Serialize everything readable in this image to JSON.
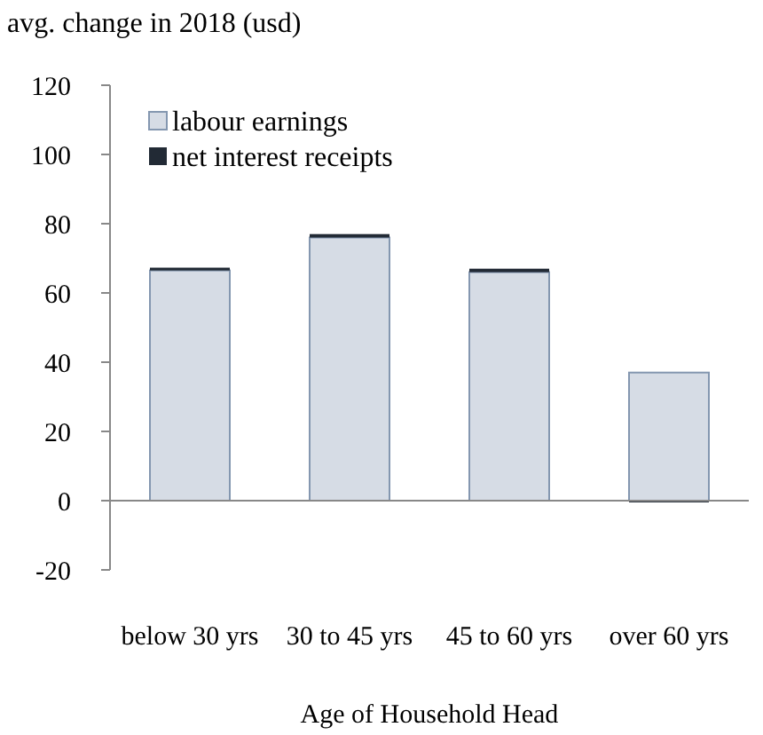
{
  "chart_data": {
    "type": "bar",
    "ylabel": "avg. change in 2018 (usd)",
    "xlabel": "Age of Household Head",
    "categories": [
      "below 30 yrs",
      "30 to 45 yrs",
      "45 to 60 yrs",
      "over 60 yrs"
    ],
    "series": [
      {
        "name": "labour earnings",
        "color": "#d6dce5",
        "values": [
          66.5,
          76,
          66,
          37
        ]
      },
      {
        "name": "net interest receipts",
        "color": "#222a35",
        "values": [
          0.8,
          1,
          1,
          -0.5
        ]
      }
    ],
    "stacked": true,
    "ylim": [
      -20,
      120
    ],
    "yticks": [
      -20,
      0,
      20,
      40,
      60,
      80,
      100,
      120
    ],
    "legend": "top left"
  }
}
